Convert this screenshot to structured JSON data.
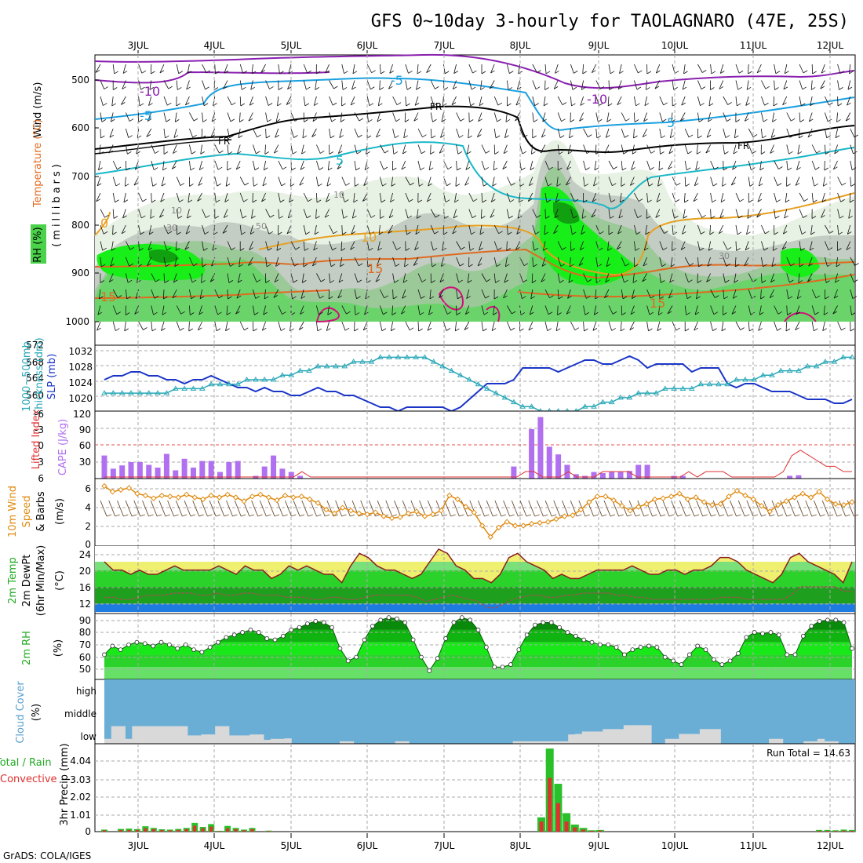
{
  "title": "GFS 0~10day 3-hourly for TAOLAGNARO (47E, 25S)",
  "credit": "GrADS: COLA/IGES",
  "x_axis": {
    "labels": [
      "3JUL",
      "4JUL",
      "5JUL",
      "6JUL",
      "7JUL",
      "8JUL",
      "9JUL",
      "10JUL",
      "11JUL",
      "12JUL"
    ]
  },
  "colors": {
    "rh_green": "#22cc22",
    "wind_orange": "#e08a10",
    "slp_blue": "#1a35c8",
    "thick_cyan": "#2aa8b8",
    "cape_purple": "#b070f0",
    "rain_red": "#e03030",
    "cloud_blue": "#6aaed6",
    "cloud_grey": "#d9d9d9"
  },
  "chart_data": [
    {
      "type": "heatmap",
      "name": "upper",
      "title": "Wind (m/s) / Temperature (°C) / RH (%)",
      "ylabel": "(millibars)",
      "label_parts": {
        "wind": "Wind (m/s)",
        "temp": "Temperature (°C)",
        "rh": "RH (%)"
      },
      "yticks": [
        "500",
        "600",
        "700",
        "800",
        "900",
        "1000"
      ],
      "contour_labels": [
        "-10",
        "-10",
        "-5",
        "-5",
        "FR",
        "FR",
        "FR",
        "5",
        "5",
        "0",
        "10",
        "15",
        "15",
        "15",
        "30",
        "30",
        "10",
        "10",
        "50"
      ]
    },
    {
      "type": "line",
      "name": "thickness_slp",
      "ylabel_left": "1000~500mb Thickness (dm)",
      "ylabel_right": "SLP (mb)",
      "label_parts": {
        "thickness": "1000~500mb",
        "thickness2": "Thickness (dm)",
        "slp": "SLP (mb)"
      },
      "yticks_left": [
        "560",
        "564",
        "568",
        "572"
      ],
      "yticks_right": [
        "1020",
        "1024",
        "1028",
        "1032"
      ],
      "ylim_left": [
        558,
        572
      ],
      "ylim_right": [
        1018,
        1034
      ],
      "slp": [
        1026,
        1027,
        1027,
        1028,
        1028,
        1027,
        1027,
        1026,
        1026,
        1025,
        1026,
        1026,
        1027,
        1026,
        1025,
        1024,
        1024,
        1023,
        1024,
        1023,
        1023,
        1022,
        1022,
        1023,
        1024,
        1023,
        1023,
        1022,
        1022,
        1021,
        1020,
        1019,
        1019,
        1018,
        1019,
        1019,
        1019,
        1019,
        1019,
        1018,
        1019,
        1021,
        1023,
        1025,
        1025,
        1025,
        1026,
        1029,
        1029,
        1029,
        1029,
        1028,
        1029,
        1030,
        1031,
        1031,
        1030,
        1030,
        1031,
        1032,
        1031,
        1029,
        1030,
        1030,
        1030,
        1030,
        1028,
        1029,
        1029,
        1029,
        1025,
        1024,
        1025,
        1025,
        1024,
        1023,
        1023,
        1023,
        1022,
        1021,
        1021,
        1021,
        1020,
        1020,
        1021
      ],
      "thickness": [
        562,
        562,
        562,
        562,
        562,
        562,
        562,
        562,
        563,
        563,
        563,
        563,
        564,
        564,
        564,
        564,
        565,
        565,
        565,
        565,
        566,
        566,
        567,
        567,
        568,
        568,
        568,
        568,
        569,
        569,
        569,
        570,
        570,
        570,
        570,
        570,
        570,
        569,
        568,
        567,
        566,
        565,
        564,
        563,
        562,
        561,
        560,
        559,
        559,
        558,
        558,
        558,
        558,
        558,
        559,
        559,
        560,
        560,
        561,
        561,
        562,
        562,
        562,
        563,
        563,
        563,
        563,
        564,
        564,
        564,
        564,
        565,
        565,
        565,
        566,
        566,
        567,
        567,
        567,
        568,
        568,
        569,
        569,
        570,
        570
      ]
    },
    {
      "type": "bar",
      "name": "cape_li",
      "ylabel_left": "Lifted Index",
      "ylabel_right": "CAPE (J/kg)",
      "yticks_left": [
        "6",
        "3",
        "0",
        "-3",
        "-6"
      ],
      "yticks_right": [
        "30",
        "60",
        "90",
        "120"
      ],
      "cape_ylim": [
        0,
        120
      ],
      "cape": [
        42,
        18,
        24,
        30,
        30,
        25,
        20,
        45,
        15,
        36,
        20,
        32,
        32,
        12,
        30,
        32,
        0,
        5,
        22,
        42,
        18,
        12,
        5,
        0,
        0,
        0,
        0,
        0,
        0,
        0,
        0,
        0,
        0,
        0,
        0,
        0,
        0,
        0,
        0,
        0,
        0,
        0,
        0,
        0,
        0,
        0,
        22,
        0,
        90,
        112,
        58,
        44,
        25,
        8,
        5,
        12,
        10,
        12,
        12,
        14,
        25,
        25,
        0,
        0,
        5,
        5,
        0,
        0,
        0,
        0,
        0,
        0,
        0,
        0,
        0,
        0,
        0,
        5,
        6,
        0,
        0,
        0,
        0,
        0,
        0
      ],
      "lifted_index": [
        6,
        6,
        6,
        6,
        6,
        6,
        6,
        6,
        6,
        6,
        6,
        6,
        6,
        6,
        6,
        6,
        6,
        6,
        6,
        6,
        6,
        6,
        6,
        5,
        6,
        6,
        6,
        6,
        6,
        6,
        6,
        6,
        6,
        6,
        6,
        6,
        6,
        6,
        6,
        6,
        6,
        6,
        6,
        6,
        6,
        6,
        6,
        6,
        6,
        5,
        5,
        6,
        6,
        6,
        5,
        6,
        6,
        6,
        5,
        5,
        5,
        5,
        6,
        6,
        6,
        6,
        6,
        6,
        5,
        6,
        5,
        5,
        5,
        6,
        6,
        6,
        6,
        6,
        6,
        5,
        2,
        1,
        2,
        3,
        4,
        4,
        5,
        5
      ]
    },
    {
      "type": "line",
      "name": "wind10m",
      "ylabel": "10m Wind Speed & Barbs (m/s)",
      "label_parts": {
        "a": "10m Wind",
        "b": "Speed",
        "c": "& Barbs",
        "d": "(m/s)"
      },
      "yticks": [
        "0",
        "2",
        "4",
        "6"
      ],
      "ylim": [
        0,
        7
      ],
      "speed": [
        6.2,
        5.6,
        5.8,
        6.0,
        5.4,
        5.2,
        4.9,
        5.2,
        5.1,
        5.0,
        5.3,
        5.0,
        4.8,
        5.2,
        5.0,
        5.3,
        5.0,
        4.6,
        5.1,
        5.3,
        5.0,
        4.7,
        5.2,
        5.0,
        5.1,
        4.8,
        4.4,
        3.7,
        3.3,
        3.9,
        3.6,
        3.3,
        3.2,
        3.4,
        3.0,
        2.8,
        2.9,
        3.3,
        3.5,
        3.0,
        3.2,
        3.6,
        5.2,
        4.8,
        4.0,
        3.4,
        2.0,
        0.8,
        1.8,
        2.4,
        2.0,
        2.0,
        2.2,
        2.3,
        2.4,
        2.7,
        3.0,
        3.1,
        3.7,
        4.5,
        5.1,
        5.1,
        4.7,
        4.1,
        3.6,
        4.0,
        4.3,
        4.8,
        4.9,
        5.1,
        5.4,
        4.8,
        5.0,
        4.5,
        4.2,
        4.3,
        5.1,
        5.7,
        5.2,
        4.8,
        4.1,
        3.5,
        4.2,
        4.6,
        5.0,
        5.4,
        5.0,
        5.6,
        4.8,
        4.3,
        4.2,
        4.5
      ]
    },
    {
      "type": "area",
      "name": "temp2m",
      "ylabel": "2m Temp / 2m DewPt (6hr Min/Max) (°C)",
      "label_parts": {
        "a": "2m Temp",
        "b": "2m DewPt",
        "c": "(6hr Min/Max)",
        "d": "(°C)"
      },
      "yticks": [
        "12",
        "16",
        "20",
        "24"
      ],
      "ylim": [
        10,
        25
      ],
      "temp": [
        22,
        20,
        20,
        19,
        20,
        19,
        19,
        20,
        21,
        20,
        20,
        20,
        20,
        21,
        20,
        19,
        21,
        20,
        20,
        18,
        19,
        21,
        20,
        21,
        20,
        19,
        19,
        17,
        21,
        24,
        23,
        21,
        20,
        20,
        19,
        18,
        19,
        22,
        25,
        24,
        21,
        20,
        18,
        18,
        17,
        19,
        23,
        24,
        22,
        21,
        20,
        18,
        19,
        18,
        18,
        19,
        20,
        20,
        20,
        20,
        21,
        20,
        19,
        19,
        20,
        20,
        19,
        20,
        20,
        21,
        23,
        23,
        22,
        20,
        19,
        18,
        17,
        19,
        23,
        24,
        22,
        21,
        20,
        19,
        17,
        22
      ],
      "dewpt": [
        13.5,
        13.5,
        13,
        13,
        13.5,
        14,
        14,
        14,
        14.5,
        14.5,
        14.5,
        14,
        14,
        14.5,
        14,
        14,
        14.5,
        14.5,
        14,
        14,
        14,
        13.5,
        13.5,
        13.5,
        13,
        13,
        13.5,
        13.5,
        13,
        13,
        13.5,
        14,
        14,
        14,
        14,
        14,
        13.5,
        12.5,
        13,
        13.5,
        14,
        13.5,
        13,
        12.5,
        11,
        11,
        12,
        13,
        13.5,
        14,
        14,
        13.5,
        13.5,
        14,
        14,
        14.5,
        14.5,
        14.5,
        14.5,
        14,
        14,
        13.5,
        13.5,
        13,
        13,
        13,
        13,
        13,
        13,
        13,
        13,
        13.5,
        13.5,
        13.5,
        13,
        13,
        13,
        13,
        13,
        14,
        16,
        16,
        16,
        16,
        16,
        15,
        15
      ]
    },
    {
      "type": "area",
      "name": "rh2m",
      "ylabel": "2m RH (%)",
      "label_parts": {
        "a": "2m RH",
        "b": "(%)"
      },
      "yticks": [
        "50",
        "60",
        "70",
        "80",
        "90"
      ],
      "ylim": [
        40,
        92
      ],
      "rh": [
        60,
        67,
        64,
        68,
        70,
        69,
        67,
        70,
        68,
        65,
        68,
        64,
        62,
        66,
        70,
        74,
        76,
        78,
        80,
        78,
        73,
        72,
        75,
        80,
        82,
        85,
        87,
        86,
        82,
        65,
        55,
        58,
        72,
        83,
        88,
        90,
        89,
        86,
        72,
        58,
        47,
        57,
        73,
        86,
        90,
        88,
        80,
        66,
        50,
        50,
        52,
        64,
        76,
        84,
        86,
        86,
        82,
        78,
        75,
        72,
        70,
        68,
        68,
        66,
        60,
        64,
        66,
        67,
        66,
        58,
        55,
        52,
        60,
        67,
        64,
        56,
        52,
        55,
        61,
        74,
        78,
        77,
        78,
        76,
        60,
        60,
        75,
        83,
        87,
        88,
        88,
        86,
        65
      ]
    },
    {
      "type": "area",
      "name": "cloud",
      "ylabel": "Cloud Cover (%)",
      "label_parts": {
        "a": "Cloud Cover",
        "b": "(%)"
      },
      "levels": [
        "high",
        "middle",
        "low"
      ],
      "low": [
        20,
        72,
        72,
        20,
        72,
        72,
        72,
        72,
        72,
        72,
        72,
        72,
        34,
        34,
        38,
        38,
        72,
        72,
        34,
        34,
        34,
        38,
        38,
        16,
        20,
        20,
        22,
        0,
        0,
        0,
        0,
        0,
        0,
        0,
        10,
        10,
        0,
        0,
        0,
        0,
        0,
        0,
        10,
        10,
        0,
        0,
        0,
        0,
        0,
        0,
        0,
        0,
        0,
        0,
        0,
        0,
        0,
        0,
        0,
        10,
        10,
        10,
        10,
        10,
        10,
        10,
        10,
        38,
        40,
        50,
        50,
        50,
        60,
        60,
        60,
        76,
        76,
        76,
        76,
        0,
        0,
        20,
        20,
        40,
        40,
        40,
        60,
        60,
        60,
        0,
        0,
        0,
        0,
        0,
        0,
        0,
        20,
        20,
        0,
        0,
        0,
        10,
        10,
        20,
        10,
        10,
        0,
        0
      ]
    },
    {
      "type": "bar",
      "name": "precip",
      "ylabel": "3hr Precip (mm)",
      "legend_left": "Total / Rain",
      "legend_left2": "Convective",
      "yticks": [
        "0",
        "1.01",
        "2.02",
        "3.03",
        "4.04"
      ],
      "ylim": [
        0,
        5.05
      ],
      "run_total": "Run Total = 14.63",
      "total": [
        0.12,
        0.0,
        0.16,
        0.18,
        0.15,
        0.32,
        0.22,
        0.14,
        0.12,
        0.16,
        0.22,
        0.52,
        0.28,
        0.45,
        0.05,
        0.34,
        0.22,
        0.12,
        0.22,
        0.0,
        0.06,
        0,
        0,
        0,
        0,
        0,
        0,
        0,
        0,
        0,
        0,
        0,
        0,
        0,
        0,
        0,
        0,
        0,
        0,
        0,
        0,
        0,
        0,
        0,
        0,
        0,
        0,
        0,
        0,
        0,
        0,
        0,
        0,
        0,
        0,
        0,
        0,
        0,
        0,
        0,
        0,
        0,
        0,
        0,
        0,
        0,
        0,
        0,
        0,
        0,
        0,
        0,
        0,
        0,
        0,
        0,
        0,
        0,
        0,
        0,
        0,
        0,
        0,
        0,
        0,
        0,
        0,
        0.1,
        0.1,
        0.08,
        0.12,
        0.1
      ],
      "convective": [
        0.08,
        0.0,
        0.1,
        0.1,
        0.1,
        0.2,
        0.15,
        0.1,
        0.08,
        0.1,
        0.15,
        0.35,
        0.2,
        0.3,
        0.03,
        0.2,
        0.15,
        0.08,
        0.15,
        0.0,
        0.04,
        0,
        0,
        0,
        0,
        0,
        0,
        0,
        0,
        0,
        0,
        0,
        0,
        0,
        0,
        0,
        0,
        0,
        0,
        0,
        0,
        0,
        0,
        0,
        0,
        0,
        0,
        0,
        0,
        0,
        0,
        0,
        0,
        0,
        0,
        0,
        0,
        0,
        0,
        0,
        0,
        0,
        0,
        0,
        0,
        0,
        0,
        0,
        0,
        0,
        0,
        0,
        0,
        0,
        0,
        0,
        0,
        0,
        0,
        0,
        0,
        0,
        0,
        0,
        0,
        0,
        0,
        0.05,
        0.05,
        0.04,
        0.06,
        0.05
      ],
      "spike_total": [
        0.85,
        4.95,
        2.85,
        1.1,
        0.42,
        0.22,
        0.08,
        0.1
      ],
      "spike_conv": [
        0.6,
        3.2,
        1.7,
        0.6,
        0.25,
        0.12,
        0.05,
        0.06
      ]
    }
  ]
}
